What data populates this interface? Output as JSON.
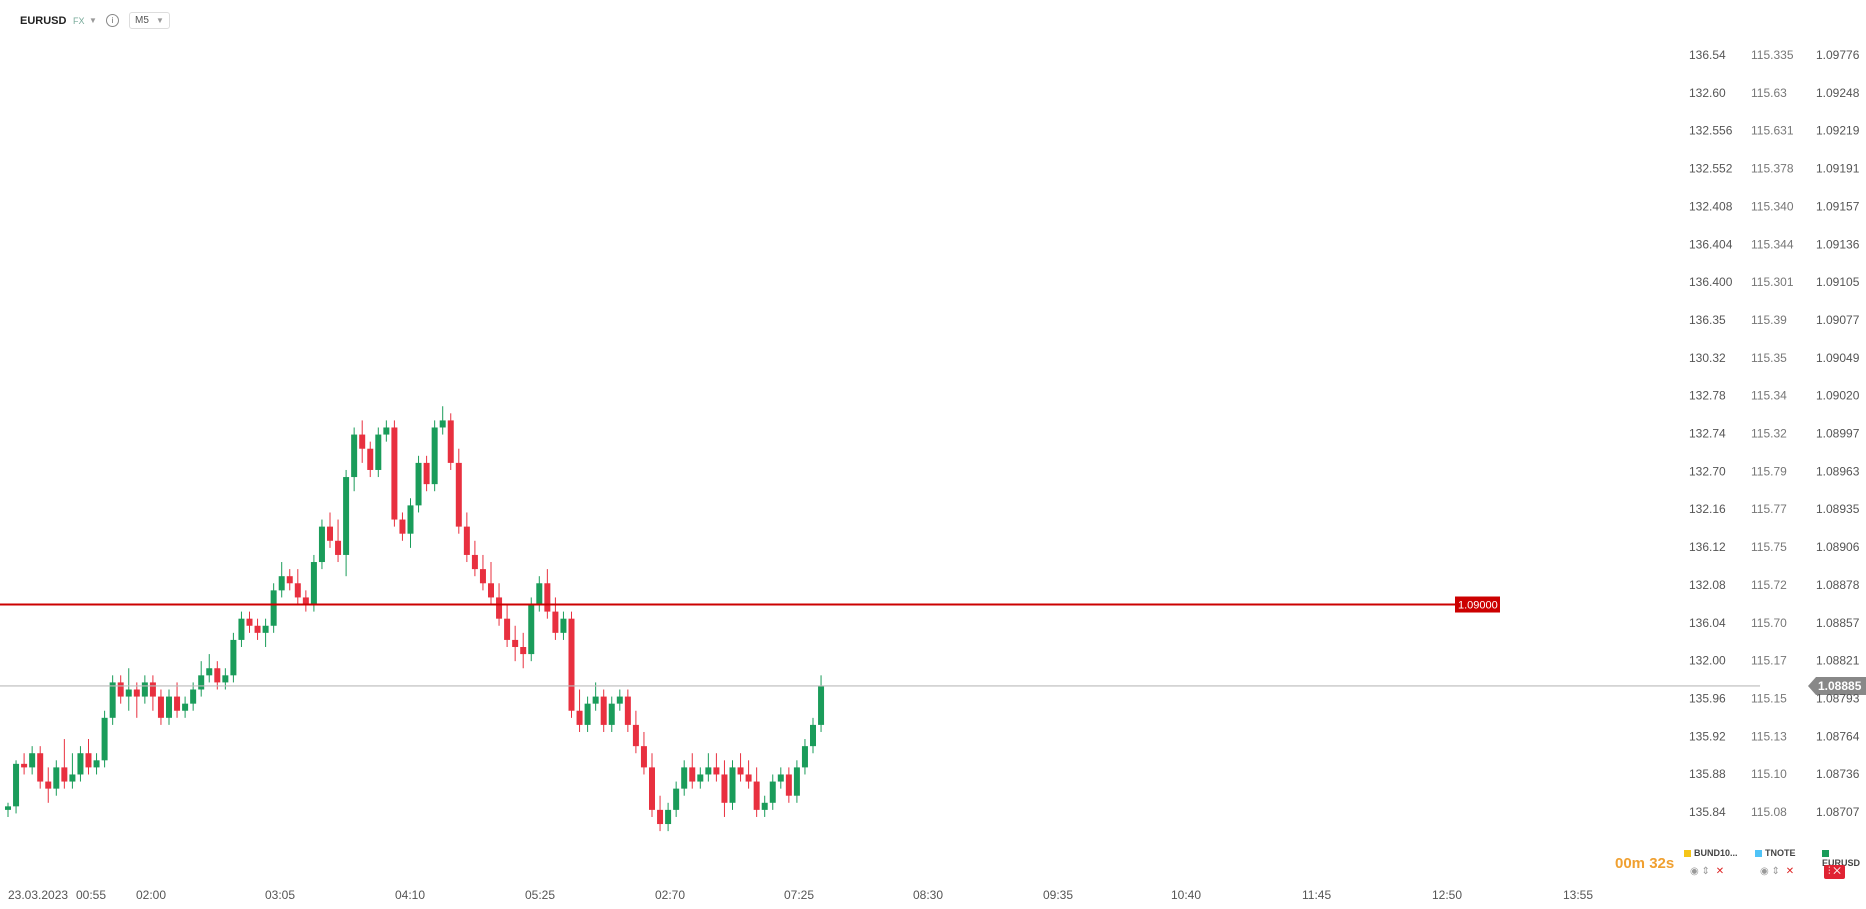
{
  "header": {
    "symbol": "EURUSD",
    "market": "FX",
    "timeframe": "M5"
  },
  "price_axes": {
    "axis1": [
      "136.54",
      "132.60",
      "132.556",
      "132.552",
      "132.408",
      "136.404",
      "136.400",
      "136.35",
      "130.32",
      "132.78",
      "132.74",
      "132.70",
      "132.16",
      "136.12",
      "132.08",
      "136.04",
      "132.00",
      "135.96",
      "135.92",
      "135.88",
      "135.84"
    ],
    "axis2": [
      "115.335",
      "115.63",
      "115.631",
      "115.378",
      "115.340",
      "115.344",
      "115.301",
      "115.39",
      "115.35",
      "115.34",
      "115.32",
      "115.79",
      "115.77",
      "115.75",
      "115.72",
      "115.70",
      "115.17",
      "115.15",
      "115.13",
      "115.10",
      "115.08"
    ],
    "axis3": [
      "1.09776",
      "1.09248",
      "1.09219",
      "1.09191",
      "1.09157",
      "1.09136",
      "1.09105",
      "1.09077",
      "1.09049",
      "1.09020",
      "1.08997",
      "1.08963",
      "1.08935",
      "1.08906",
      "1.08878",
      "1.08857",
      "1.08821",
      "1.08793",
      "1.08764",
      "1.08736",
      "1.08707"
    ]
  },
  "time_axis": [
    "23.03.2023",
    "00:55",
    "02:00",
    "03:05",
    "04:10",
    "05:25",
    "02:70",
    "07:25",
    "08:30",
    "09:35",
    "10:40",
    "11:45",
    "12:50",
    "13:55"
  ],
  "horizontal_line": {
    "label": "1.09000",
    "color": "#cc0000"
  },
  "current_price": {
    "label": "1.08885",
    "color": "#888888"
  },
  "countdown": "00m 32s",
  "legend": [
    {
      "label": "BUND10...",
      "color": "#f5c518"
    },
    {
      "label": "TNOTE",
      "color": "#4fc3f7"
    },
    {
      "label": "EURUSD",
      "color": "#1a9c5a"
    }
  ],
  "colors": {
    "up": "#1a9c5a",
    "down": "#e8303f",
    "grid_line": "#bbbbbb"
  },
  "icons": [
    "info-icon",
    "chevron-down-icon",
    "eye-icon",
    "sort-icon",
    "close-icon",
    "candle-icon"
  ],
  "chart_data": {
    "type": "candlestick",
    "symbol": "EURUSD",
    "candles": [
      [
        1.0871,
        1.0872,
        1.087,
        1.08715
      ],
      [
        1.08715,
        1.0878,
        1.08705,
        1.08775
      ],
      [
        1.08775,
        1.0879,
        1.0876,
        1.0877
      ],
      [
        1.0877,
        1.088,
        1.0876,
        1.0879
      ],
      [
        1.0879,
        1.088,
        1.0874,
        1.0875
      ],
      [
        1.0875,
        1.0877,
        1.0872,
        1.0874
      ],
      [
        1.0874,
        1.0878,
        1.0873,
        1.0877
      ],
      [
        1.0877,
        1.0881,
        1.0874,
        1.0875
      ],
      [
        1.0875,
        1.0879,
        1.0874,
        1.0876
      ],
      [
        1.0876,
        1.088,
        1.0875,
        1.0879
      ],
      [
        1.0879,
        1.0881,
        1.0876,
        1.0877
      ],
      [
        1.0877,
        1.0879,
        1.0876,
        1.0878
      ],
      [
        1.0878,
        1.0885,
        1.0877,
        1.0884
      ],
      [
        1.0884,
        1.089,
        1.0883,
        1.0889
      ],
      [
        1.0889,
        1.089,
        1.0886,
        1.0887
      ],
      [
        1.0887,
        1.0891,
        1.0885,
        1.0888
      ],
      [
        1.0888,
        1.0889,
        1.0884,
        1.0887
      ],
      [
        1.0887,
        1.089,
        1.0886,
        1.0889
      ],
      [
        1.0889,
        1.089,
        1.0885,
        1.0887
      ],
      [
        1.0887,
        1.0888,
        1.0883,
        1.0884
      ],
      [
        1.0884,
        1.0888,
        1.0883,
        1.0887
      ],
      [
        1.0887,
        1.0889,
        1.0884,
        1.0885
      ],
      [
        1.0885,
        1.0887,
        1.0884,
        1.0886
      ],
      [
        1.0886,
        1.0889,
        1.0885,
        1.0888
      ],
      [
        1.0888,
        1.0892,
        1.0887,
        1.089
      ],
      [
        1.089,
        1.0893,
        1.0889,
        1.0891
      ],
      [
        1.0891,
        1.0892,
        1.0888,
        1.0889
      ],
      [
        1.0889,
        1.0891,
        1.0888,
        1.089
      ],
      [
        1.089,
        1.0896,
        1.0889,
        1.0895
      ],
      [
        1.0895,
        1.0899,
        1.0894,
        1.0898
      ],
      [
        1.0898,
        1.0899,
        1.0896,
        1.0897
      ],
      [
        1.0897,
        1.0898,
        1.0895,
        1.0896
      ],
      [
        1.0896,
        1.0898,
        1.0894,
        1.0897
      ],
      [
        1.0897,
        1.0903,
        1.0896,
        1.0902
      ],
      [
        1.0902,
        1.0906,
        1.0901,
        1.0904
      ],
      [
        1.0904,
        1.0905,
        1.0902,
        1.0903
      ],
      [
        1.0903,
        1.0905,
        1.09,
        1.0901
      ],
      [
        1.0901,
        1.0902,
        1.0899,
        1.09
      ],
      [
        1.09,
        1.0907,
        1.0899,
        1.0906
      ],
      [
        1.0906,
        1.0912,
        1.0905,
        1.0911
      ],
      [
        1.0911,
        1.0913,
        1.0908,
        1.0909
      ],
      [
        1.0909,
        1.0912,
        1.0906,
        1.0907
      ],
      [
        1.0907,
        1.0919,
        1.0904,
        1.0918
      ],
      [
        1.0918,
        1.0925,
        1.0916,
        1.0924
      ],
      [
        1.0924,
        1.0926,
        1.092,
        1.0922
      ],
      [
        1.0922,
        1.0923,
        1.0918,
        1.0919
      ],
      [
        1.0919,
        1.0925,
        1.0918,
        1.0924
      ],
      [
        1.0924,
        1.0926,
        1.0923,
        1.0925
      ],
      [
        1.0925,
        1.0926,
        1.0911,
        1.0912
      ],
      [
        1.0912,
        1.0913,
        1.0909,
        1.091
      ],
      [
        1.091,
        1.0915,
        1.0908,
        1.0914
      ],
      [
        1.0914,
        1.0921,
        1.0913,
        1.092
      ],
      [
        1.092,
        1.0921,
        1.0916,
        1.0917
      ],
      [
        1.0917,
        1.0926,
        1.0916,
        1.0925
      ],
      [
        1.0925,
        1.0928,
        1.0924,
        1.0926
      ],
      [
        1.0926,
        1.0927,
        1.0919,
        1.092
      ],
      [
        1.092,
        1.0922,
        1.091,
        1.0911
      ],
      [
        1.0911,
        1.0913,
        1.0906,
        1.0907
      ],
      [
        1.0907,
        1.0909,
        1.0904,
        1.0905
      ],
      [
        1.0905,
        1.0907,
        1.0902,
        1.0903
      ],
      [
        1.0903,
        1.0906,
        1.09,
        1.0901
      ],
      [
        1.0901,
        1.0903,
        1.0897,
        1.0898
      ],
      [
        1.0898,
        1.09,
        1.0894,
        1.0895
      ],
      [
        1.0895,
        1.0897,
        1.0892,
        1.0894
      ],
      [
        1.0894,
        1.0896,
        1.0891,
        1.0893
      ],
      [
        1.0893,
        1.0901,
        1.0892,
        1.09
      ],
      [
        1.09,
        1.0904,
        1.0899,
        1.0903
      ],
      [
        1.0903,
        1.0905,
        1.0898,
        1.0899
      ],
      [
        1.0899,
        1.0901,
        1.0895,
        1.0896
      ],
      [
        1.0896,
        1.0899,
        1.0895,
        1.0898
      ],
      [
        1.0898,
        1.0899,
        1.0884,
        1.0885
      ],
      [
        1.0885,
        1.0888,
        1.0882,
        1.0883
      ],
      [
        1.0883,
        1.0887,
        1.0882,
        1.0886
      ],
      [
        1.0886,
        1.0889,
        1.0885,
        1.0887
      ],
      [
        1.0887,
        1.0888,
        1.0882,
        1.0883
      ],
      [
        1.0883,
        1.0887,
        1.0882,
        1.0886
      ],
      [
        1.0886,
        1.0888,
        1.0885,
        1.0887
      ],
      [
        1.0887,
        1.0888,
        1.0882,
        1.0883
      ],
      [
        1.0883,
        1.0885,
        1.0879,
        1.088
      ],
      [
        1.088,
        1.0882,
        1.0876,
        1.0877
      ],
      [
        1.0877,
        1.0879,
        1.087,
        1.0871
      ],
      [
        1.0871,
        1.0873,
        1.0868,
        1.0869
      ],
      [
        1.0869,
        1.0872,
        1.0868,
        1.0871
      ],
      [
        1.0871,
        1.0875,
        1.087,
        1.0874
      ],
      [
        1.0874,
        1.0878,
        1.0873,
        1.0877
      ],
      [
        1.0877,
        1.0879,
        1.0874,
        1.0875
      ],
      [
        1.0875,
        1.0877,
        1.0874,
        1.0876
      ],
      [
        1.0876,
        1.0879,
        1.0875,
        1.0877
      ],
      [
        1.0877,
        1.0879,
        1.0875,
        1.0876
      ],
      [
        1.0876,
        1.0878,
        1.087,
        1.0872
      ],
      [
        1.0872,
        1.0878,
        1.0871,
        1.0877
      ],
      [
        1.0877,
        1.0879,
        1.0875,
        1.0876
      ],
      [
        1.0876,
        1.0878,
        1.0874,
        1.0875
      ],
      [
        1.0875,
        1.0877,
        1.087,
        1.0871
      ],
      [
        1.0871,
        1.0873,
        1.087,
        1.0872
      ],
      [
        1.0872,
        1.0876,
        1.0871,
        1.0875
      ],
      [
        1.0875,
        1.0877,
        1.0874,
        1.0876
      ],
      [
        1.0876,
        1.0877,
        1.0872,
        1.0873
      ],
      [
        1.0873,
        1.0878,
        1.0872,
        1.0877
      ],
      [
        1.0877,
        1.0881,
        1.0876,
        1.088
      ],
      [
        1.088,
        1.0884,
        1.0879,
        1.0883
      ],
      [
        1.0883,
        1.089,
        1.0882,
        1.08885
      ]
    ]
  }
}
